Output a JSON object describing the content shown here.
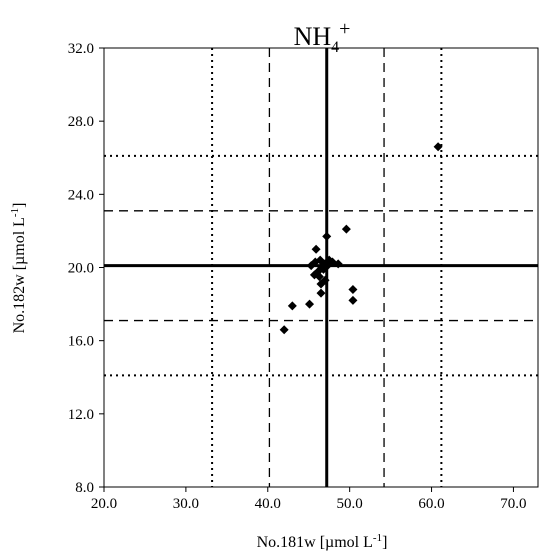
{
  "chart_data": {
    "type": "scatter",
    "title": "NH4+",
    "title_parts": {
      "base": "NH",
      "sub": "4",
      "sup": "+"
    },
    "xlabel": "No.181w  [µmol L-1]",
    "ylabel": "No.182w  [µmol L-1]",
    "xlabel_parts": {
      "main": "No.181w  [µmol L",
      "sup": "-1",
      "end": "]"
    },
    "ylabel_parts": {
      "main": "No.182w  [µmol L",
      "sup": "-1",
      "end": "]"
    },
    "xlim": [
      20,
      73
    ],
    "ylim": [
      8,
      32
    ],
    "x_ticks": [
      "20.0",
      "30.0",
      "40.0",
      "50.0",
      "60.0",
      "70.0"
    ],
    "x_tick_values": [
      20,
      30,
      40,
      50,
      60,
      70
    ],
    "y_ticks": [
      "8.0",
      "12.0",
      "16.0",
      "20.0",
      "24.0",
      "28.0",
      "32.0"
    ],
    "y_tick_values": [
      8,
      12,
      16,
      20,
      24,
      28,
      32
    ],
    "grid": false,
    "marker": "diamond",
    "marker_color": "#000000",
    "reference_lines": {
      "x": [
        {
          "value": 47.2,
          "style": "solid"
        },
        {
          "value": 40.2,
          "style": "dashed"
        },
        {
          "value": 54.2,
          "style": "dashed"
        },
        {
          "value": 33.2,
          "style": "dotted"
        },
        {
          "value": 61.2,
          "style": "dotted"
        }
      ],
      "y": [
        {
          "value": 20.1,
          "style": "solid"
        },
        {
          "value": 23.1,
          "style": "dashed"
        },
        {
          "value": 17.1,
          "style": "dashed"
        },
        {
          "value": 26.1,
          "style": "dotted"
        },
        {
          "value": 14.1,
          "style": "dotted"
        }
      ]
    },
    "series": [
      {
        "points": [
          [
            60.8,
            26.6
          ],
          [
            49.6,
            22.1
          ],
          [
            47.2,
            21.7
          ],
          [
            45.9,
            21.0
          ],
          [
            45.8,
            20.3
          ],
          [
            46.4,
            20.4
          ],
          [
            46.9,
            20.2
          ],
          [
            47.5,
            20.4
          ],
          [
            47.9,
            20.3
          ],
          [
            48.6,
            20.2
          ],
          [
            45.3,
            20.1
          ],
          [
            46.6,
            20.0
          ],
          [
            47.3,
            20.1
          ],
          [
            46.2,
            19.8
          ],
          [
            46.8,
            19.9
          ],
          [
            45.7,
            19.6
          ],
          [
            46.3,
            19.5
          ],
          [
            47.0,
            19.3
          ],
          [
            46.5,
            19.1
          ],
          [
            50.4,
            18.8
          ],
          [
            50.4,
            18.2
          ],
          [
            46.5,
            18.6
          ],
          [
            45.1,
            18.0
          ],
          [
            43.0,
            17.9
          ],
          [
            42.0,
            16.6
          ]
        ]
      }
    ]
  }
}
